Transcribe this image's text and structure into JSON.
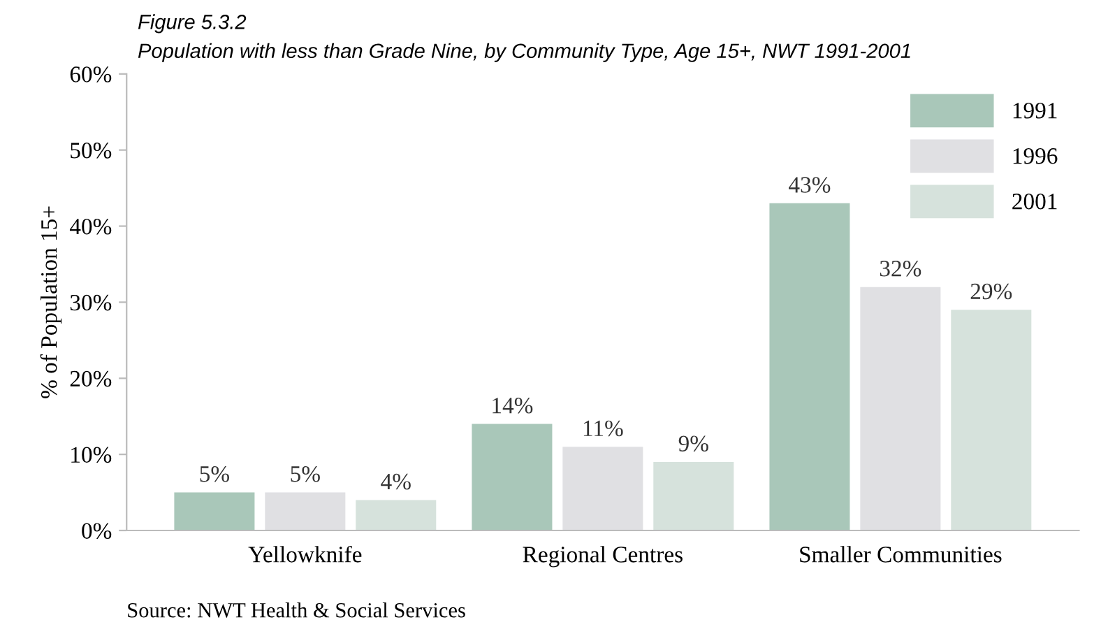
{
  "chart_data": {
    "type": "bar",
    "title": "Figure 5.3.2",
    "subtitle": "Population with less than Grade Nine, by Community Type, Age 15+, NWT 1991-2001",
    "ylabel": "% of Population 15+",
    "categories": [
      "Yellowknife",
      "Regional Centres",
      "Smaller Communities"
    ],
    "series": [
      {
        "name": "1991",
        "color": "#a9c7b9",
        "values": [
          5,
          14,
          43
        ],
        "value_labels": [
          "5%",
          "14%",
          "43%"
        ]
      },
      {
        "name": "1996",
        "color": "#e0e0e3",
        "values": [
          5,
          11,
          32
        ],
        "value_labels": [
          "5%",
          "11%",
          "32%"
        ]
      },
      {
        "name": "2001",
        "color": "#d6e2dc",
        "values": [
          4,
          9,
          29
        ],
        "value_labels": [
          "4%",
          "9%",
          "29%"
        ]
      }
    ],
    "ylim": [
      0,
      60
    ],
    "yticks": [
      {
        "value": 0,
        "label": "0%"
      },
      {
        "value": 10,
        "label": "10%"
      },
      {
        "value": 20,
        "label": "20%"
      },
      {
        "value": 30,
        "label": "30%"
      },
      {
        "value": 40,
        "label": "40%"
      },
      {
        "value": 50,
        "label": "50%"
      },
      {
        "value": 60,
        "label": "60%"
      }
    ],
    "grid": false,
    "legend": "top right",
    "annotations": [
      "Source: NWT Health & Social Services"
    ]
  }
}
